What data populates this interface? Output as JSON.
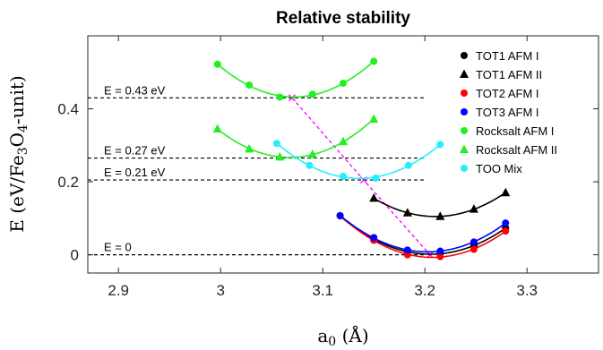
{
  "chart_data": {
    "type": "line",
    "title": "Relative stability",
    "xlabel": "a0 (Å)",
    "ylabel": "E (eV/Fe3O4-unit)",
    "xlim": [
      2.87,
      3.37
    ],
    "ylim": [
      -0.05,
      0.6
    ],
    "xticks": [
      "2.9",
      "3",
      "3.1",
      "3.2",
      "3.3"
    ],
    "yticks": [
      "0",
      "0.2",
      "0.4"
    ],
    "grid": false,
    "legend_position": "top-right",
    "colors": {
      "black": "#000000",
      "red": "#ff0000",
      "blue": "#0000ff",
      "green": "#22ee22",
      "cyan": "#22eeff",
      "magenta": "#ff00ff"
    },
    "series": [
      {
        "name": "TOT1 AFM I",
        "color": "#000000",
        "marker": "circle",
        "x": [
          3.117,
          3.15,
          3.183,
          3.215,
          3.248,
          3.279
        ],
        "y": [
          0.107,
          0.04,
          0.01,
          0.003,
          0.025,
          0.073
        ]
      },
      {
        "name": "TOT1 AFM II",
        "color": "#000000",
        "marker": "triangle",
        "x": [
          3.15,
          3.183,
          3.215,
          3.248,
          3.279
        ],
        "y": [
          0.155,
          0.115,
          0.105,
          0.125,
          0.17
        ]
      },
      {
        "name": "TOT2 AFM I",
        "color": "#ff0000",
        "marker": "circle",
        "x": [
          3.117,
          3.15,
          3.183,
          3.215,
          3.248,
          3.279
        ],
        "y": [
          0.107,
          0.04,
          0.0,
          -0.005,
          0.015,
          0.065
        ]
      },
      {
        "name": "TOT3 AFM I",
        "color": "#0000ff",
        "marker": "circle",
        "x": [
          3.117,
          3.15,
          3.183,
          3.215,
          3.248,
          3.279
        ],
        "y": [
          0.107,
          0.047,
          0.013,
          0.01,
          0.035,
          0.087
        ]
      },
      {
        "name": "Rocksalt AFM I",
        "color": "#22ee22",
        "marker": "circle",
        "x": [
          2.997,
          3.028,
          3.058,
          3.09,
          3.12,
          3.15
        ],
        "y": [
          0.522,
          0.465,
          0.432,
          0.44,
          0.47,
          0.53
        ]
      },
      {
        "name": "Rocksalt AFM II",
        "color": "#22ee22",
        "marker": "triangle",
        "x": [
          2.997,
          3.028,
          3.058,
          3.09,
          3.12,
          3.15
        ],
        "y": [
          0.345,
          0.29,
          0.268,
          0.275,
          0.31,
          0.372
        ]
      },
      {
        "name": "TOO Mix",
        "color": "#22eeff",
        "marker": "circle",
        "x": [
          3.055,
          3.087,
          3.12,
          3.152,
          3.184,
          3.215
        ],
        "y": [
          0.305,
          0.245,
          0.215,
          0.21,
          0.245,
          0.302
        ]
      }
    ],
    "annotations": [
      {
        "text": "E = 0.43 eV",
        "y": 0.43
      },
      {
        "text": "E = 0.27 eV",
        "y": 0.265
      },
      {
        "text": "E = 0.21 eV",
        "y": 0.205
      },
      {
        "text": "E = 0",
        "y": 0.0
      }
    ],
    "minima_path": {
      "x": [
        3.07,
        3.14,
        3.205
      ],
      "y": [
        0.43,
        0.205,
        0.0
      ]
    }
  }
}
